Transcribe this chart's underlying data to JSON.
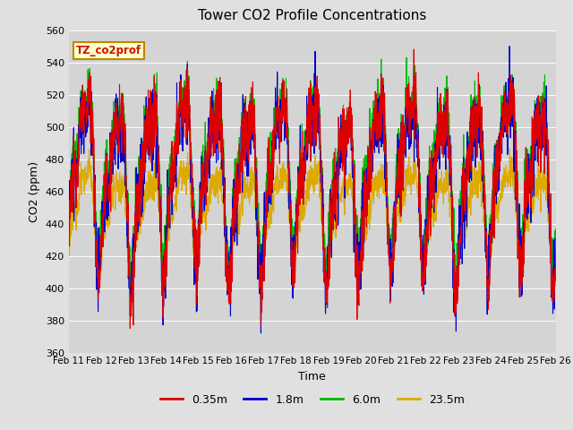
{
  "title": "Tower CO2 Profile Concentrations",
  "xlabel": "Time",
  "ylabel": "CO2 (ppm)",
  "ylim": [
    360,
    560
  ],
  "yticks": [
    360,
    380,
    400,
    420,
    440,
    460,
    480,
    500,
    520,
    540,
    560
  ],
  "date_labels": [
    "Feb 11",
    "Feb 12",
    "Feb 13",
    "Feb 14",
    "Feb 15",
    "Feb 16",
    "Feb 17",
    "Feb 18",
    "Feb 19",
    "Feb 20",
    "Feb 21",
    "Feb 22",
    "Feb 23",
    "Feb 24",
    "Feb 25",
    "Feb 26"
  ],
  "series_labels": [
    "0.35m",
    "1.8m",
    "6.0m",
    "23.5m"
  ],
  "series_colors": [
    "#dd0000",
    "#0000cc",
    "#00bb00",
    "#ddaa00"
  ],
  "legend_label": "TZ_co2prof",
  "bg_color": "#e0e0e0",
  "plot_bg_color": "#d4d4d4",
  "n_points": 2160,
  "seed": 12345,
  "line_width": 0.8
}
